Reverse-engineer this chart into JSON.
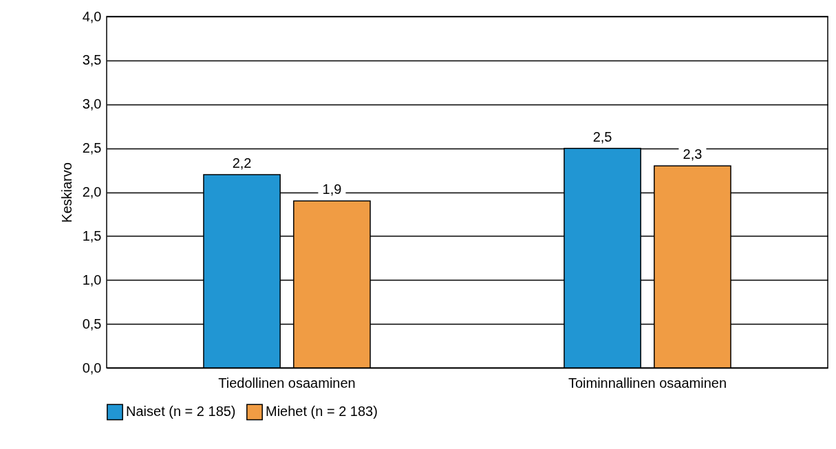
{
  "chart_data": {
    "type": "bar",
    "ylabel": "Keskiarvo",
    "categories": [
      "Tiedollinen osaaminen",
      "Toiminnallinen osaaminen"
    ],
    "series": [
      {
        "name": "Naiset (n = 2 185)",
        "color": "#2196d3",
        "values": [
          2.2,
          2.5
        ],
        "value_labels": [
          "2,2",
          "2,5"
        ]
      },
      {
        "name": "Miehet (n = 2 183)",
        "color": "#f09c44",
        "values": [
          1.9,
          2.3
        ],
        "value_labels": [
          "1,9",
          "2,3"
        ]
      }
    ],
    "ylim": [
      0,
      4
    ],
    "yticks": [
      {
        "value": 0,
        "label": "0,0"
      },
      {
        "value": 0.5,
        "label": "0,5"
      },
      {
        "value": 1,
        "label": "1,0"
      },
      {
        "value": 1.5,
        "label": "1,5"
      },
      {
        "value": 2,
        "label": "2,0"
      },
      {
        "value": 2.5,
        "label": "2,5"
      },
      {
        "value": 3,
        "label": "3,0"
      },
      {
        "value": 3.5,
        "label": "3,5"
      },
      {
        "value": 4,
        "label": "4,0"
      }
    ],
    "grid": "y",
    "legend": "bottom"
  }
}
